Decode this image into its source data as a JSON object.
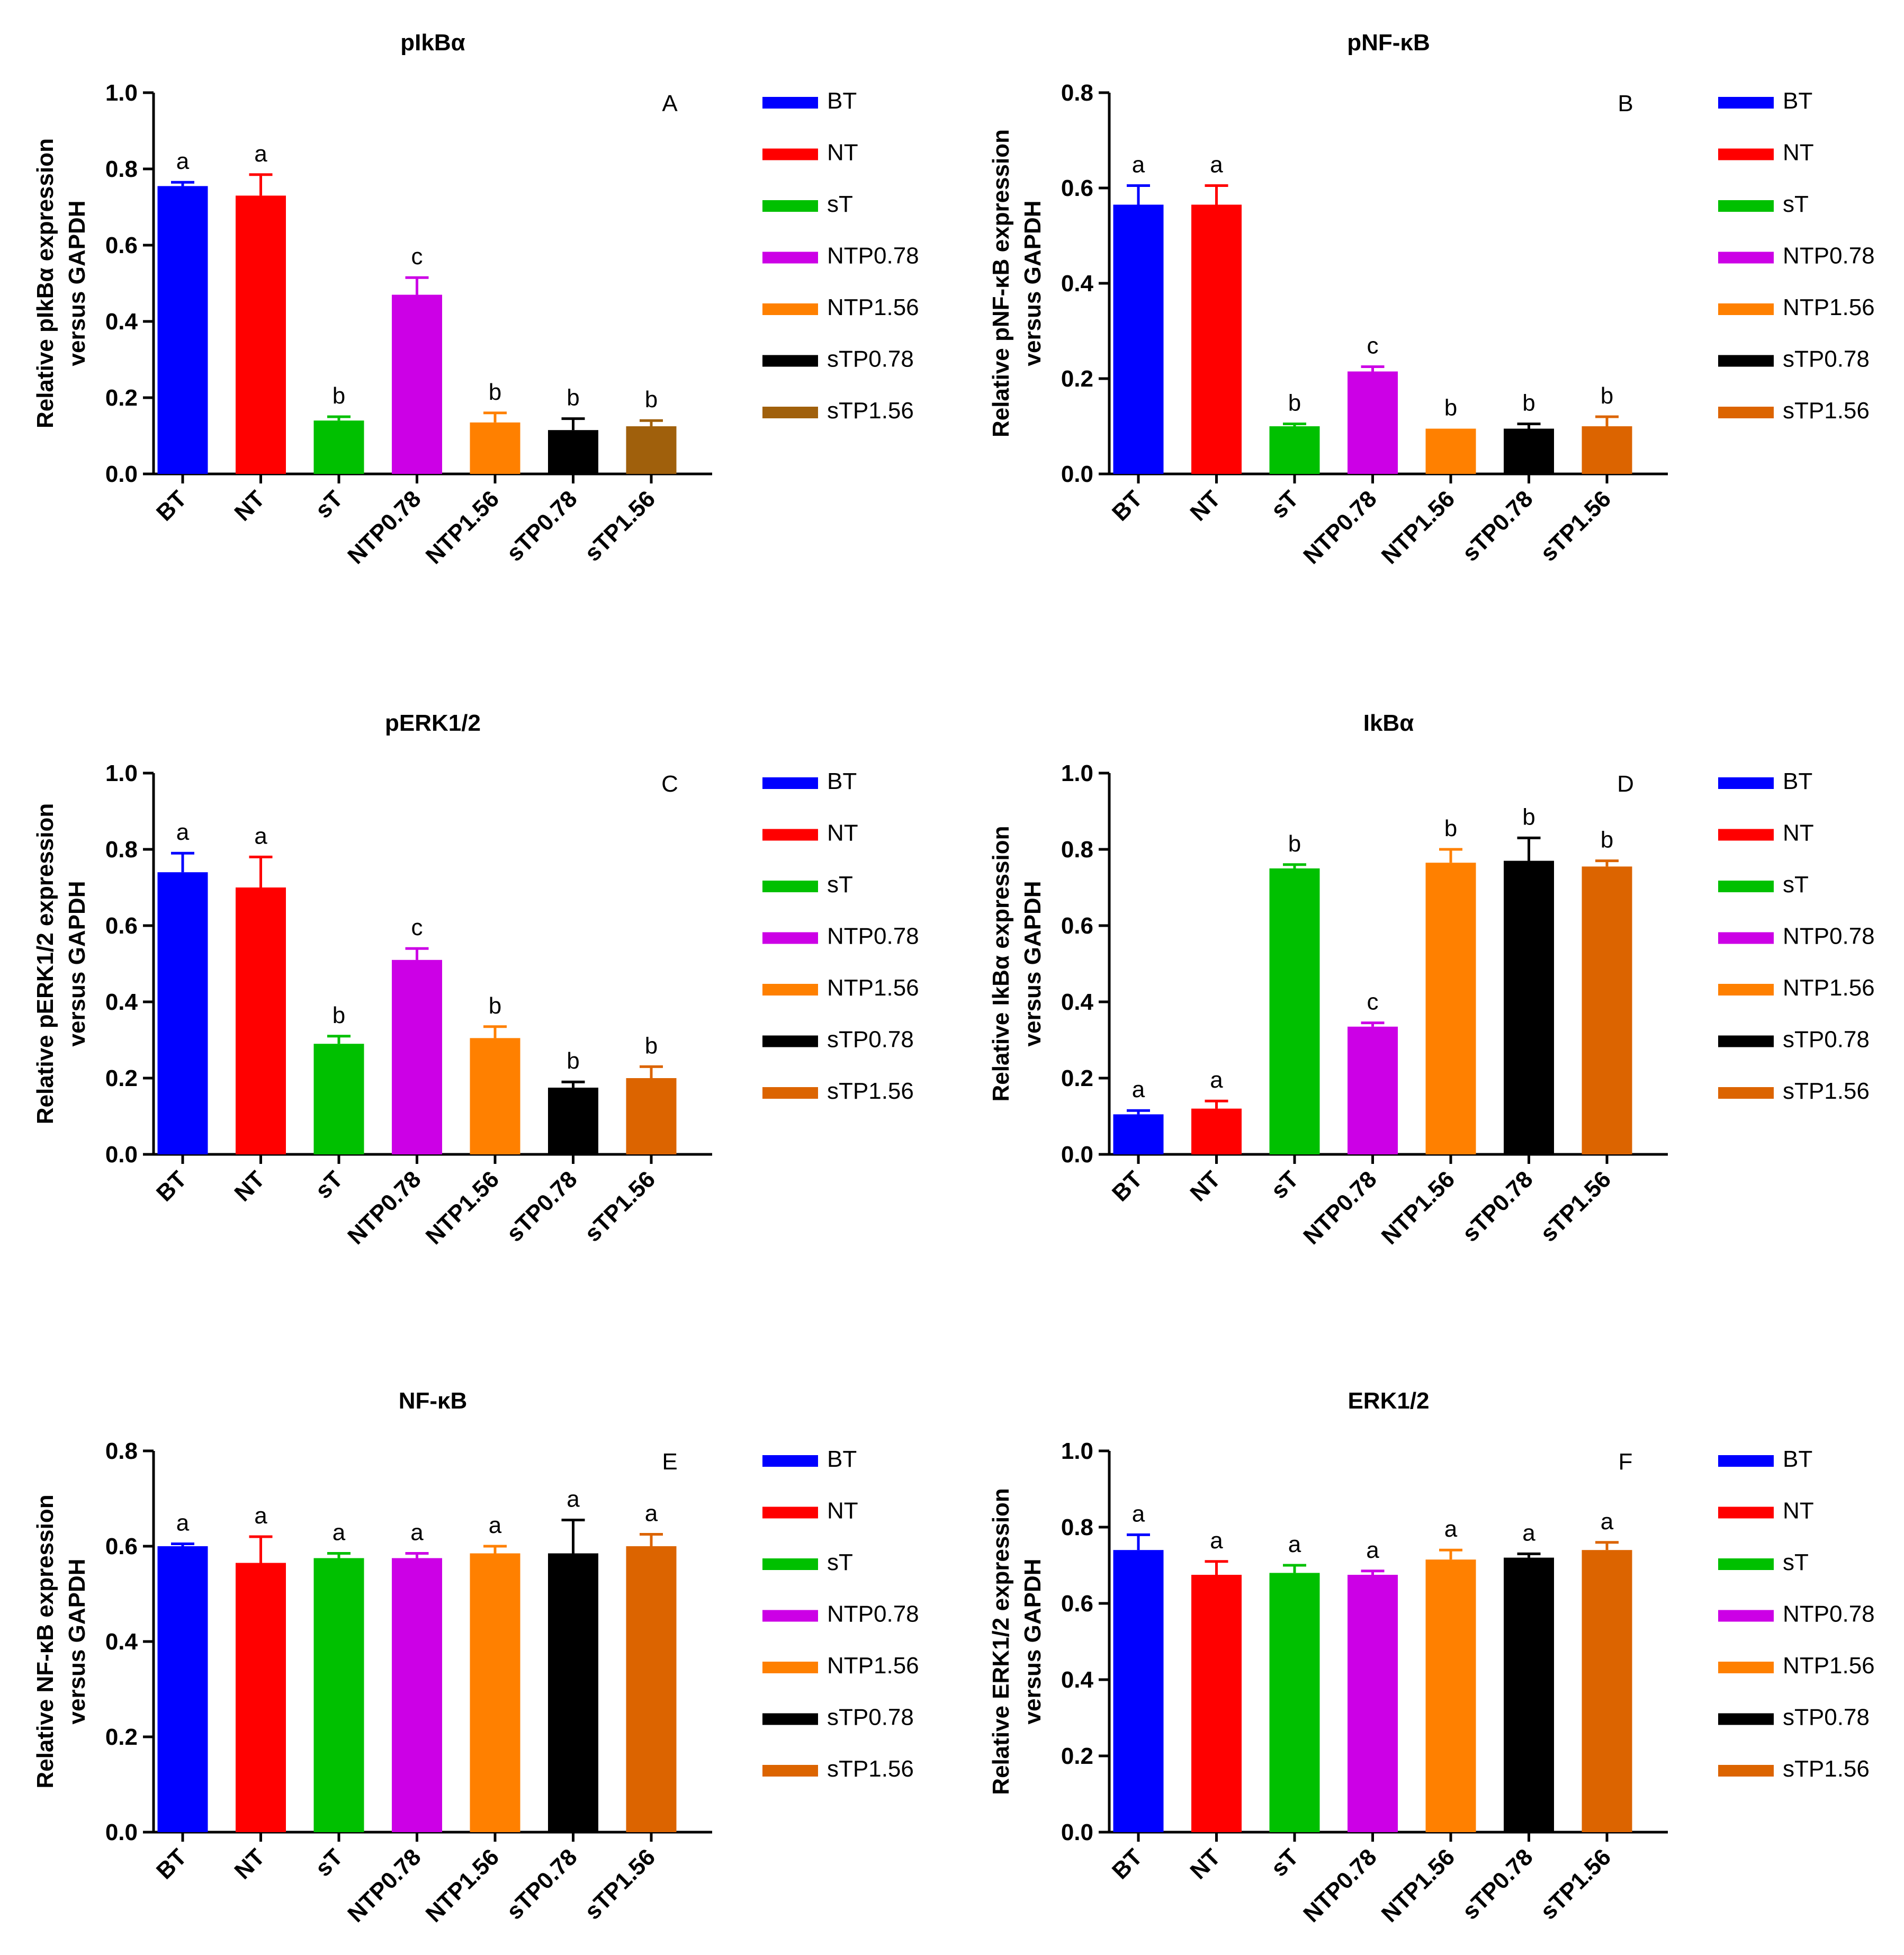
{
  "chart_data": [
    {
      "type": "bar",
      "title": "pIkBα",
      "panel": "A",
      "ylabel": [
        "Relative pIkBα expression",
        "versus GAPDH"
      ],
      "ylim": [
        0,
        1.0
      ],
      "yticks": [
        "0.0",
        "0.2",
        "0.4",
        "0.6",
        "0.8",
        "1.0"
      ],
      "categories": [
        "BT",
        "NT",
        "sT",
        "NTP0.78",
        "NTP1.56",
        "sTP0.78",
        "sTP1.56"
      ],
      "values": [
        0.755,
        0.73,
        0.14,
        0.47,
        0.135,
        0.115,
        0.125
      ],
      "errors": [
        0.01,
        0.055,
        0.01,
        0.045,
        0.025,
        0.03,
        0.015
      ],
      "significance": [
        "a",
        "a",
        "b",
        "c",
        "b",
        "b",
        "b"
      ],
      "colors": [
        "#0000ff",
        "#ff0000",
        "#00c000",
        "#cc00e6",
        "#ff8000",
        "#000000",
        "#a0600c"
      ],
      "legend": [
        "BT",
        "NT",
        "sT",
        "NTP0.78",
        "NTP1.56",
        "sTP0.78",
        "sTP1.56"
      ]
    },
    {
      "type": "bar",
      "title": "pNF-κB",
      "panel": "B",
      "ylabel": [
        "Relative pNF-κB expression",
        "versus GAPDH"
      ],
      "ylim": [
        0,
        0.8
      ],
      "yticks": [
        "0.0",
        "0.2",
        "0.4",
        "0.6",
        "0.8"
      ],
      "categories": [
        "BT",
        "NT",
        "sT",
        "NTP0.78",
        "NTP1.56",
        "sTP0.78",
        "sTP1.56"
      ],
      "values": [
        0.565,
        0.565,
        0.1,
        0.215,
        0.095,
        0.095,
        0.1
      ],
      "errors": [
        0.04,
        0.04,
        0.005,
        0.01,
        0.0,
        0.01,
        0.02
      ],
      "significance": [
        "a",
        "a",
        "b",
        "c",
        "b",
        "b",
        "b"
      ],
      "colors": [
        "#0000ff",
        "#ff0000",
        "#00c000",
        "#cc00e6",
        "#ff8000",
        "#000000",
        "#dc6400"
      ],
      "legend": [
        "BT",
        "NT",
        "sT",
        "NTP0.78",
        "NTP1.56",
        "sTP0.78",
        "sTP1.56"
      ]
    },
    {
      "type": "bar",
      "title": "pERK1/2",
      "panel": "C",
      "ylabel": [
        "Relative pERK1/2 expression",
        "versus GAPDH"
      ],
      "ylim": [
        0,
        1.0
      ],
      "yticks": [
        "0.0",
        "0.2",
        "0.4",
        "0.6",
        "0.8",
        "1.0"
      ],
      "categories": [
        "BT",
        "NT",
        "sT",
        "NTP0.78",
        "NTP1.56",
        "sTP0.78",
        "sTP1.56"
      ],
      "values": [
        0.74,
        0.7,
        0.29,
        0.51,
        0.305,
        0.175,
        0.2
      ],
      "errors": [
        0.05,
        0.08,
        0.02,
        0.03,
        0.03,
        0.015,
        0.03
      ],
      "significance": [
        "a",
        "a",
        "b",
        "c",
        "b",
        "b",
        "b"
      ],
      "colors": [
        "#0000ff",
        "#ff0000",
        "#00c000",
        "#cc00e6",
        "#ff8000",
        "#000000",
        "#dc6400"
      ],
      "legend": [
        "BT",
        "NT",
        "sT",
        "NTP0.78",
        "NTP1.56",
        "sTP0.78",
        "sTP1.56"
      ]
    },
    {
      "type": "bar",
      "title": "IkBα",
      "panel": "D",
      "ylabel": [
        "Relative IkBα expression",
        "versus GAPDH"
      ],
      "ylim": [
        0,
        1.0
      ],
      "yticks": [
        "0.0",
        "0.2",
        "0.4",
        "0.6",
        "0.8",
        "1.0"
      ],
      "categories": [
        "BT",
        "NT",
        "sT",
        "NTP0.78",
        "NTP1.56",
        "sTP0.78",
        "sTP1.56"
      ],
      "values": [
        0.105,
        0.12,
        0.75,
        0.335,
        0.765,
        0.77,
        0.755
      ],
      "errors": [
        0.01,
        0.02,
        0.01,
        0.01,
        0.035,
        0.06,
        0.015
      ],
      "significance": [
        "a",
        "a",
        "b",
        "c",
        "b",
        "b",
        "b"
      ],
      "colors": [
        "#0000ff",
        "#ff0000",
        "#00c000",
        "#cc00e6",
        "#ff8000",
        "#000000",
        "#dc6400"
      ],
      "legend": [
        "BT",
        "NT",
        "sT",
        "NTP0.78",
        "NTP1.56",
        "sTP0.78",
        "sTP1.56"
      ]
    },
    {
      "type": "bar",
      "title": "NF-κB",
      "panel": "E",
      "ylabel": [
        "Relative NF-κB expression",
        "versus GAPDH"
      ],
      "ylim": [
        0,
        0.8
      ],
      "yticks": [
        "0.0",
        "0.2",
        "0.4",
        "0.6",
        "0.8"
      ],
      "categories": [
        "BT",
        "NT",
        "sT",
        "NTP0.78",
        "NTP1.56",
        "sTP0.78",
        "sTP1.56"
      ],
      "values": [
        0.6,
        0.565,
        0.575,
        0.575,
        0.585,
        0.585,
        0.6
      ],
      "errors": [
        0.005,
        0.055,
        0.01,
        0.01,
        0.015,
        0.07,
        0.025
      ],
      "significance": [
        "a",
        "a",
        "a",
        "a",
        "a",
        "a",
        "a"
      ],
      "colors": [
        "#0000ff",
        "#ff0000",
        "#00c000",
        "#cc00e6",
        "#ff8000",
        "#000000",
        "#dc6400"
      ],
      "legend": [
        "BT",
        "NT",
        "sT",
        "NTP0.78",
        "NTP1.56",
        "sTP0.78",
        "sTP1.56"
      ]
    },
    {
      "type": "bar",
      "title": "ERK1/2",
      "panel": "F",
      "ylabel": [
        "Relative ERK1/2 expression",
        "versus GAPDH"
      ],
      "ylim": [
        0,
        1.0
      ],
      "yticks": [
        "0.0",
        "0.2",
        "0.4",
        "0.6",
        "0.8",
        "1.0"
      ],
      "categories": [
        "BT",
        "NT",
        "sT",
        "NTP0.78",
        "NTP1.56",
        "sTP0.78",
        "sTP1.56"
      ],
      "values": [
        0.74,
        0.675,
        0.68,
        0.675,
        0.715,
        0.72,
        0.74
      ],
      "errors": [
        0.04,
        0.035,
        0.02,
        0.01,
        0.025,
        0.01,
        0.02
      ],
      "significance": [
        "a",
        "a",
        "a",
        "a",
        "a",
        "a",
        "a"
      ],
      "colors": [
        "#0000ff",
        "#ff0000",
        "#00c000",
        "#cc00e6",
        "#ff8000",
        "#000000",
        "#dc6400"
      ],
      "legend": [
        "BT",
        "NT",
        "sT",
        "NTP0.78",
        "NTP1.56",
        "sTP0.78",
        "sTP1.56"
      ]
    }
  ]
}
